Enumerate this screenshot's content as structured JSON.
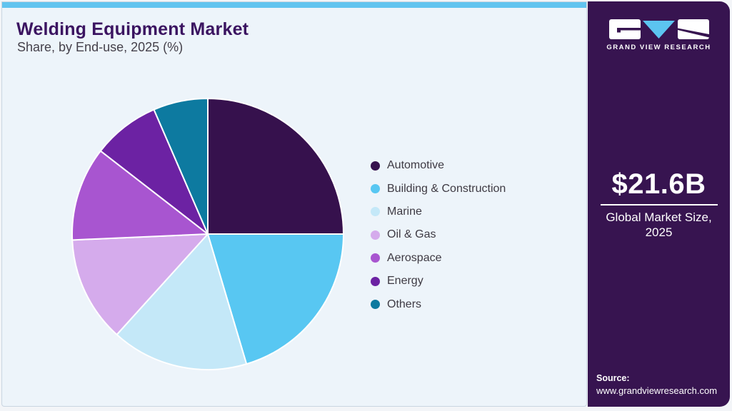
{
  "header": {
    "title": "Welding Equipment Market",
    "subtitle": "Share, by End-use, 2025 (%)"
  },
  "chart_data": {
    "type": "pie",
    "title": "Welding Equipment Market Share, by End-use, 2025 (%)",
    "unit": "percent",
    "start_angle_deg": 0,
    "direction": "clockwise",
    "legend_position": "right",
    "slices": [
      {
        "label": "Automotive",
        "value": 25.0,
        "color": "#36114d"
      },
      {
        "label": "Building & Construction",
        "value": 20.4,
        "color": "#58c7f2"
      },
      {
        "label": "Marine",
        "value": 16.3,
        "color": "#c4e8f8"
      },
      {
        "label": "Oil & Gas",
        "value": 12.6,
        "color": "#d5abec"
      },
      {
        "label": "Aerospace",
        "value": 11.2,
        "color": "#a855d0"
      },
      {
        "label": "Energy",
        "value": 8.0,
        "color": "#6c22a3"
      },
      {
        "label": "Others",
        "value": 6.5,
        "color": "#0d7aa0"
      }
    ]
  },
  "sidebar": {
    "brand_name": "GRAND VIEW RESEARCH",
    "market_size_value": "$21.6B",
    "market_size_label_line1": "Global Market Size,",
    "market_size_label_line2": "2025",
    "source_label": "Source:",
    "source_url": "www.grandviewresearch.com",
    "colors": {
      "background": "#371450",
      "accent_blue": "#5cc4f0"
    }
  },
  "theme": {
    "panel_background": "#edf4fa",
    "top_stripe": "#61c4ef",
    "title_color": "#3b1461",
    "text_color": "#45414b"
  }
}
